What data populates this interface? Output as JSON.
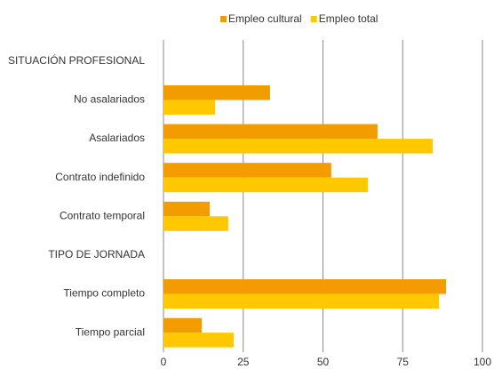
{
  "chart_data": {
    "type": "bar",
    "orientation": "horizontal",
    "categories": [
      "SITUACIÓN PROFESIONAL",
      "No asalariados",
      "Asalariados",
      "Contrato indefinido",
      "Contrato temporal",
      "TIPO DE JORNADA",
      "Tiempo completo",
      "Tiempo parcial"
    ],
    "series": [
      {
        "name": "Empleo cultural",
        "color": "#f39c00",
        "values": [
          null,
          33.4,
          67.1,
          52.6,
          14.5,
          null,
          88.6,
          12.0
        ]
      },
      {
        "name": "Empleo total",
        "color": "#ffc800",
        "values": [
          null,
          16.2,
          84.4,
          64.1,
          20.3,
          null,
          86.4,
          22.0
        ]
      }
    ],
    "xlim": [
      0,
      100
    ],
    "xticks": [
      0,
      25,
      50,
      75,
      100
    ],
    "grid": true,
    "legend": "top"
  }
}
